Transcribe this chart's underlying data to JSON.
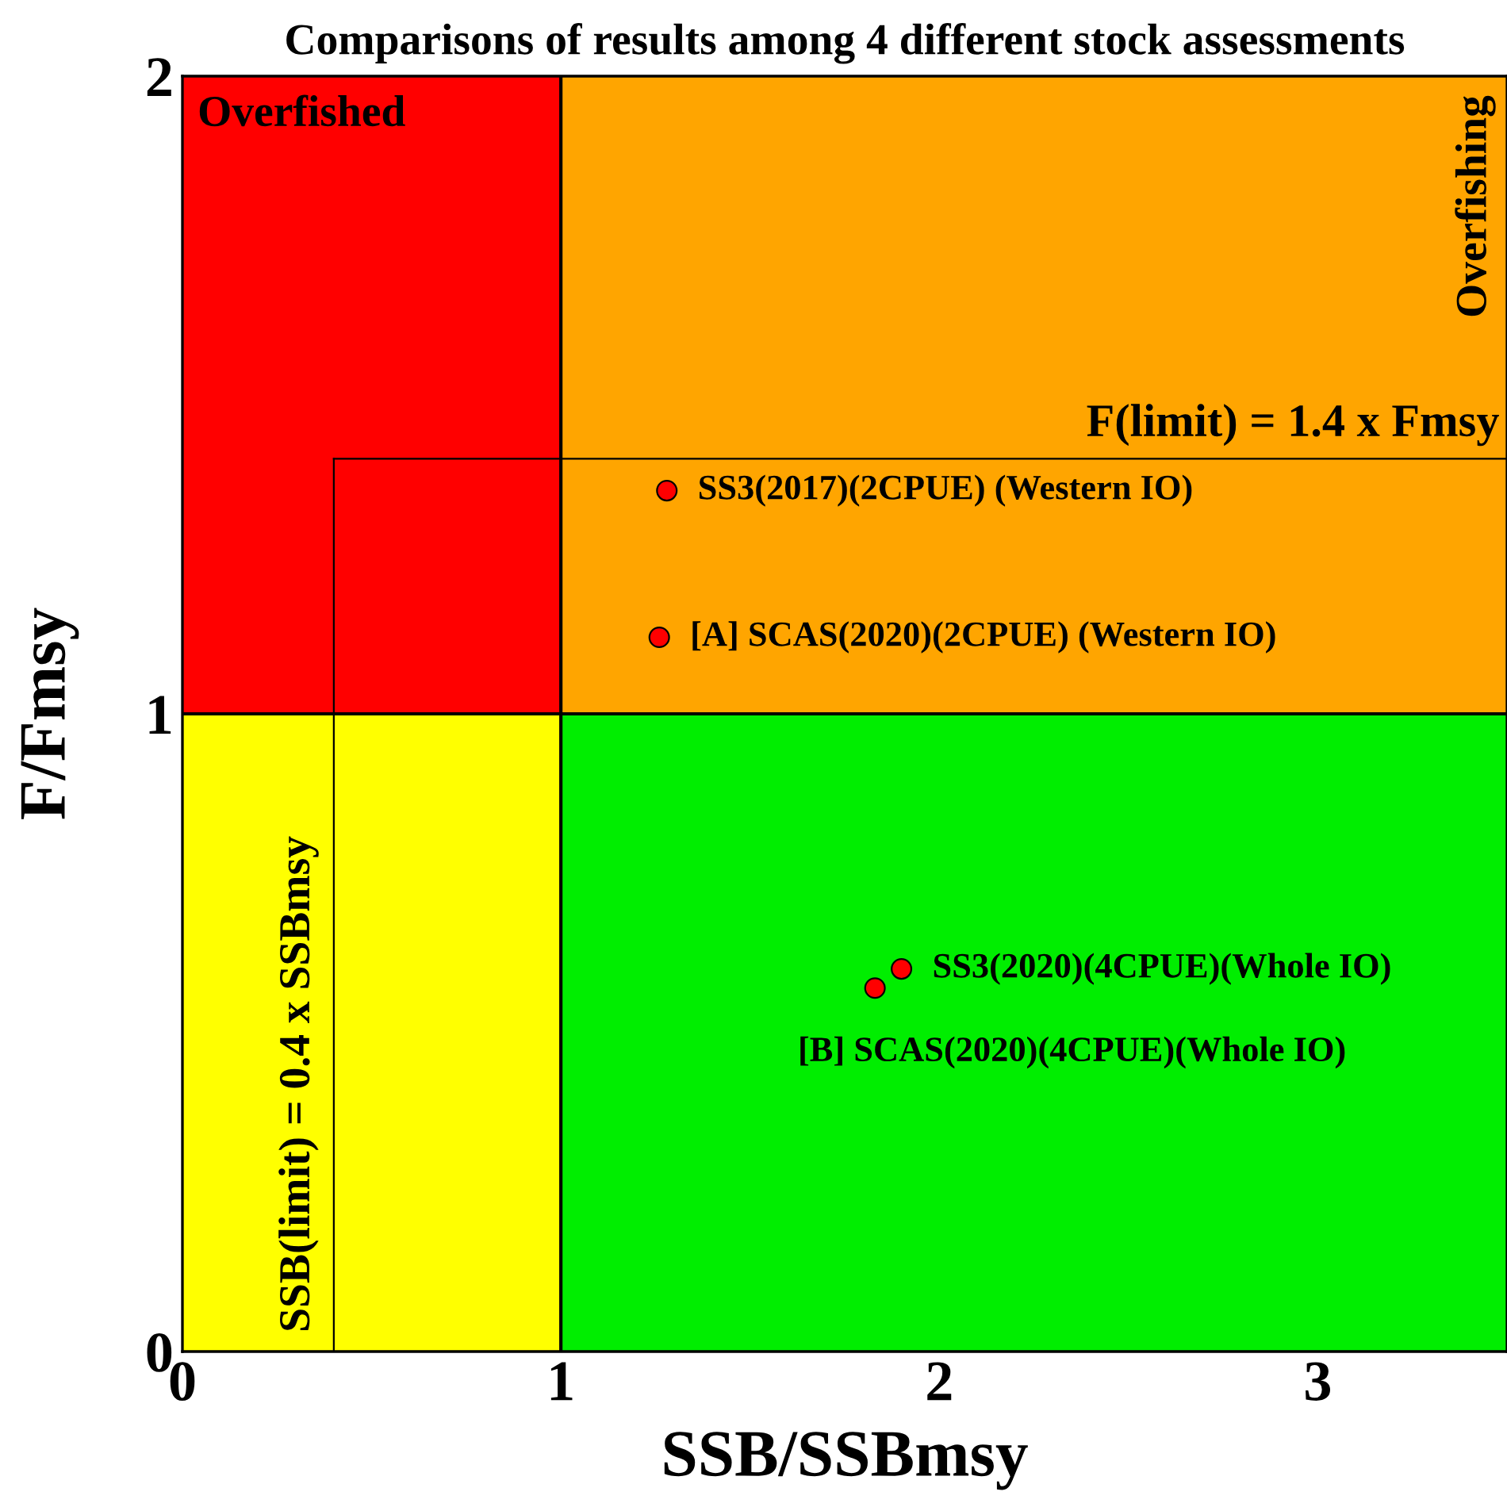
{
  "chart_data": {
    "type": "scatter",
    "title": "Comparisons of results among 4 different stock assessments",
    "xlabel": "SSB/SSBmsy",
    "ylabel": "F/Fmsy",
    "xlim": [
      0,
      3.5
    ],
    "ylim": [
      0,
      2
    ],
    "xticks": [
      0,
      1,
      2,
      3
    ],
    "yticks": [
      0,
      1,
      2
    ],
    "grid": false,
    "marker": "circle",
    "series": [
      {
        "color": "#ff0000",
        "x": [
          1.28,
          1.26,
          1.9,
          1.83
        ],
        "values": [
          1.35,
          1.12,
          0.6,
          0.57
        ]
      }
    ],
    "ref_lines": [
      {
        "axis": "x",
        "value": 1,
        "color": "#000000"
      },
      {
        "axis": "y",
        "value": 1,
        "color": "#000000"
      },
      {
        "axis": "x",
        "value": 0.4,
        "color": "#000000",
        "label": "SSB(limit) = 0.4 x SSBmsy"
      },
      {
        "axis": "y",
        "value": 1.4,
        "color": "#000000",
        "label": "F(limit) = 1.4 x Fmsy"
      }
    ],
    "annotations": [
      "Overfished",
      "Overfishing",
      {
        "text": "SS3(2017)(2CPUE) (Western IO)",
        "x": 1.28,
        "y": 1.35
      },
      {
        "text": "[A] SCAS(2020)(2CPUE) (Western IO)",
        "x": 1.26,
        "y": 1.12
      },
      {
        "text": "SS3(2020)(4CPUE)(Whole IO)",
        "x": 1.9,
        "y": 0.6
      },
      {
        "text": "[B] SCAS(2020)(4CPUE)(Whole IO)",
        "x": 1.83,
        "y": 0.57
      }
    ]
  }
}
